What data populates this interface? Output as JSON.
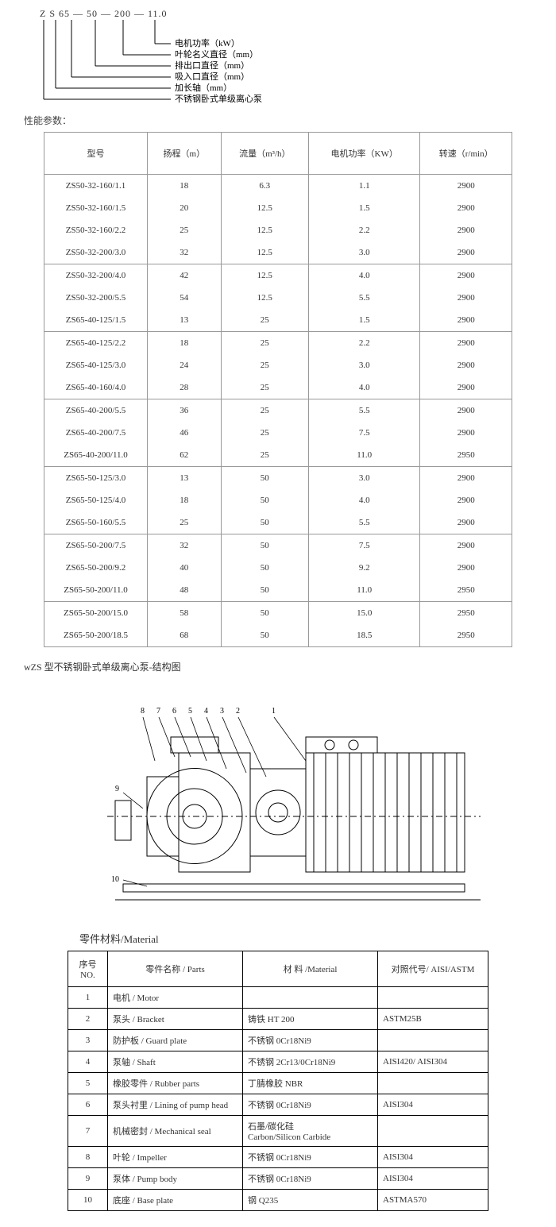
{
  "model_code": "Z S 65 — 50 — 200 — 11.0",
  "decode_labels": [
    "电机功率（kW）",
    "叶轮名义直径（mm）",
    "排出口直径（mm）",
    "吸入口直径（mm）",
    "加长轴（mm）",
    "不锈钢卧式单级离心泵"
  ],
  "spec_section_label": "性能参数：",
  "spec_headers": [
    "型号",
    "扬程（m）",
    "流量（m³/h）",
    "电机功率（KW）",
    "转速（r/min）"
  ],
  "spec_groups": [
    [
      [
        "ZS50-32-160/1.1",
        "18",
        "6.3",
        "1.1",
        "2900"
      ],
      [
        "ZS50-32-160/1.5",
        "20",
        "12.5",
        "1.5",
        "2900"
      ],
      [
        "ZS50-32-160/2.2",
        "25",
        "12.5",
        "2.2",
        "2900"
      ],
      [
        "ZS50-32-200/3.0",
        "32",
        "12.5",
        "3.0",
        "2900"
      ]
    ],
    [
      [
        "ZS50-32-200/4.0",
        "42",
        "12.5",
        "4.0",
        "2900"
      ],
      [
        "ZS50-32-200/5.5",
        "54",
        "12.5",
        "5.5",
        "2900"
      ],
      [
        "ZS65-40-125/1.5",
        "13",
        "25",
        "1.5",
        "2900"
      ]
    ],
    [
      [
        "ZS65-40-125/2.2",
        "18",
        "25",
        "2.2",
        "2900"
      ],
      [
        "ZS65-40-125/3.0",
        "24",
        "25",
        "3.0",
        "2900"
      ],
      [
        "ZS65-40-160/4.0",
        "28",
        "25",
        "4.0",
        "2900"
      ]
    ],
    [
      [
        "ZS65-40-200/5.5",
        "36",
        "25",
        "5.5",
        "2900"
      ],
      [
        "ZS65-40-200/7.5",
        "46",
        "25",
        "7.5",
        "2900"
      ],
      [
        "ZS65-40-200/11.0",
        "62",
        "25",
        "11.0",
        "2950"
      ]
    ],
    [
      [
        "ZS65-50-125/3.0",
        "13",
        "50",
        "3.0",
        "2900"
      ],
      [
        "ZS65-50-125/4.0",
        "18",
        "50",
        "4.0",
        "2900"
      ],
      [
        "ZS65-50-160/5.5",
        "25",
        "50",
        "5.5",
        "2900"
      ]
    ],
    [
      [
        "ZS65-50-200/7.5",
        "32",
        "50",
        "7.5",
        "2900"
      ],
      [
        "ZS65-50-200/9.2",
        "40",
        "50",
        "9.2",
        "2900"
      ],
      [
        "ZS65-50-200/11.0",
        "48",
        "50",
        "11.0",
        "2950"
      ]
    ],
    [
      [
        "ZS65-50-200/15.0",
        "58",
        "50",
        "15.0",
        "2950"
      ],
      [
        "ZS65-50-200/18.5",
        "68",
        "50",
        "18.5",
        "2950"
      ]
    ]
  ],
  "structure_title": "wZS 型不锈钢卧式单级离心泵-结构图",
  "drawing_callouts": [
    "1",
    "2",
    "3",
    "4",
    "5",
    "6",
    "7",
    "8",
    "9",
    "10"
  ],
  "material_title": "零件材料/Material",
  "material_headers": [
    "序号 NO.",
    "零件名称 / Parts",
    "材 料 /Material",
    "对照代号/ AISI/ASTM"
  ],
  "material_rows": [
    [
      "1",
      "电机 / Motor",
      "",
      ""
    ],
    [
      "2",
      "泵头 / Bracket",
      "铸铁 HT 200",
      "ASTM25B"
    ],
    [
      "3",
      "防护板 / Guard plate",
      "不锈钢 0Cr18Ni9",
      ""
    ],
    [
      "4",
      "泵轴 / Shaft",
      "不锈钢 2Cr13/0Cr18Ni9",
      "AISI420/ AISI304"
    ],
    [
      "5",
      "橡胶零件 / Rubber parts",
      "丁腈橡胶 NBR",
      ""
    ],
    [
      "6",
      "泵头衬里 / Lining of pump head",
      "不锈钢 0Cr18Ni9",
      "AISI304"
    ],
    [
      "7",
      "机械密封 / Mechanical seal",
      "石墨/碳化硅\nCarbon/Silicon Carbide",
      ""
    ],
    [
      "8",
      "叶轮 / Impeller",
      "不锈钢 0Cr18Ni9",
      "AISI304"
    ],
    [
      "9",
      "泵体 / Pump body",
      "不锈钢 0Cr18Ni9",
      "AISI304"
    ],
    [
      "10",
      "底座 / Base plate",
      "钢 Q235",
      "ASTMA570"
    ]
  ],
  "colors": {
    "line": "#000000",
    "table_border": "#999999",
    "text": "#333333",
    "bg": "#ffffff"
  }
}
